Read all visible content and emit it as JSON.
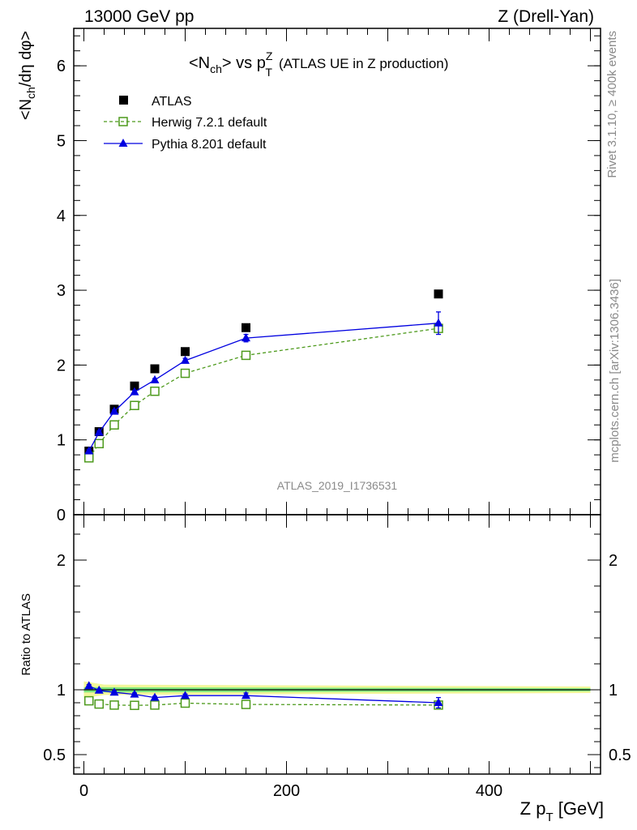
{
  "header": {
    "left": "13000 GeV pp",
    "right": "Z (Drell-Yan)"
  },
  "title": {
    "main": "<N",
    "main_sub": "ch",
    "vs": "> vs p",
    "pt_sup": "Z",
    "pt_sub": "T",
    "rest": "(ATLAS UE in Z production)"
  },
  "side_labels": {
    "rivet": "Rivet 3.1.10, ≥ 400k events",
    "mcplots": "mcplots.cern.ch [arXiv:1306.3436]"
  },
  "analysis_id": "ATLAS_2019_I1736531",
  "ylabel_top": "<N_ch/dη dφ>",
  "ylabel_bottom": "Ratio to ATLAS",
  "xlabel": "Z p_T [GeV]",
  "chart_data": [
    {
      "type": "scatter",
      "panel": "main",
      "xlim": [
        -10,
        510
      ],
      "ylim": [
        0,
        6.5
      ],
      "yticks": [
        0,
        1,
        2,
        3,
        4,
        5,
        6
      ],
      "ytick_labels": [
        "0",
        "1",
        "2",
        "3",
        "4",
        "5",
        "6"
      ],
      "legend": {
        "placement": "top-left"
      },
      "series": [
        {
          "name": "ATLAS",
          "style": "data",
          "color": "#000000",
          "x": [
            5,
            15,
            30,
            50,
            70,
            100,
            160,
            350
          ],
          "y": [
            0.85,
            1.11,
            1.41,
            1.72,
            1.95,
            2.18,
            2.5,
            2.95
          ]
        },
        {
          "name": "Herwig 7.2.1 default",
          "style": "dashed-square",
          "color": "#4d9a1c",
          "x": [
            5,
            15,
            30,
            50,
            70,
            100,
            160,
            350
          ],
          "y": [
            0.76,
            0.95,
            1.2,
            1.46,
            1.65,
            1.89,
            2.13,
            2.49
          ]
        },
        {
          "name": "Pythia 8.201 default",
          "style": "solid-triangle",
          "color": "#0000e0",
          "x": [
            5,
            15,
            30,
            50,
            70,
            100,
            160,
            350
          ],
          "y": [
            0.85,
            1.1,
            1.38,
            1.64,
            1.8,
            2.06,
            2.36,
            2.56
          ],
          "err": [
            0.02,
            0.02,
            0.02,
            0.02,
            0.02,
            0.03,
            0.05,
            0.15
          ]
        }
      ]
    },
    {
      "type": "scatter",
      "panel": "ratio",
      "xlim": [
        -10,
        510
      ],
      "ylim": [
        0.35,
        2.35
      ],
      "yticks": [
        0.5,
        1,
        2
      ],
      "ytick_labels": [
        "0.5",
        "1",
        "2"
      ],
      "xticks": [
        0,
        200,
        400
      ],
      "xtick_labels": [
        "0",
        "200",
        "400"
      ],
      "band": {
        "inner_color": "#7fe87f",
        "outer_color": "#f2f79a"
      },
      "series": [
        {
          "name": "Herwig 7.2.1 default",
          "style": "dashed-square",
          "color": "#4d9a1c",
          "x": [
            5,
            15,
            30,
            50,
            70,
            100,
            160,
            350
          ],
          "y": [
            0.915,
            0.89,
            0.882,
            0.88,
            0.882,
            0.897,
            0.887,
            0.882
          ]
        },
        {
          "name": "Pythia 8.201 default",
          "style": "solid-triangle",
          "color": "#0000e0",
          "x": [
            5,
            15,
            30,
            50,
            70,
            100,
            160,
            350
          ],
          "y": [
            1.03,
            0.995,
            0.98,
            0.965,
            0.94,
            0.955,
            0.955,
            0.9
          ],
          "err": [
            0.01,
            0.01,
            0.01,
            0.01,
            0.01,
            0.012,
            0.02,
            0.04
          ]
        }
      ]
    }
  ]
}
